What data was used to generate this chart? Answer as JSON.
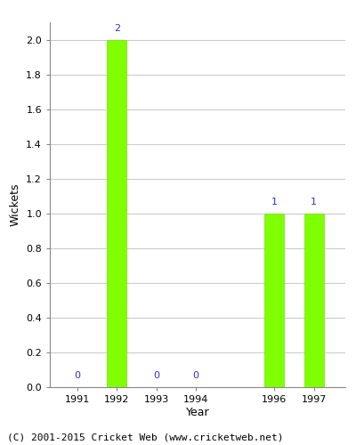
{
  "years": [
    1991,
    1992,
    1993,
    1994,
    1996,
    1997
  ],
  "values": [
    0,
    2,
    0,
    0,
    1,
    1
  ],
  "bar_color": "#7FFF00",
  "bar_edgecolor": "#6EE800",
  "label_color": "#3333CC",
  "xlabel": "Year",
  "ylabel": "Wickets",
  "ylim": [
    0,
    2.1
  ],
  "yticks": [
    0.0,
    0.2,
    0.4,
    0.6,
    0.8,
    1.0,
    1.2,
    1.4,
    1.6,
    1.8,
    2.0
  ],
  "footer": "(C) 2001-2015 Cricket Web (www.cricketweb.net)",
  "grid_color": "#cccccc",
  "label_fontsize": 8,
  "axis_fontsize": 8,
  "footer_fontsize": 8,
  "bar_width": 0.5
}
